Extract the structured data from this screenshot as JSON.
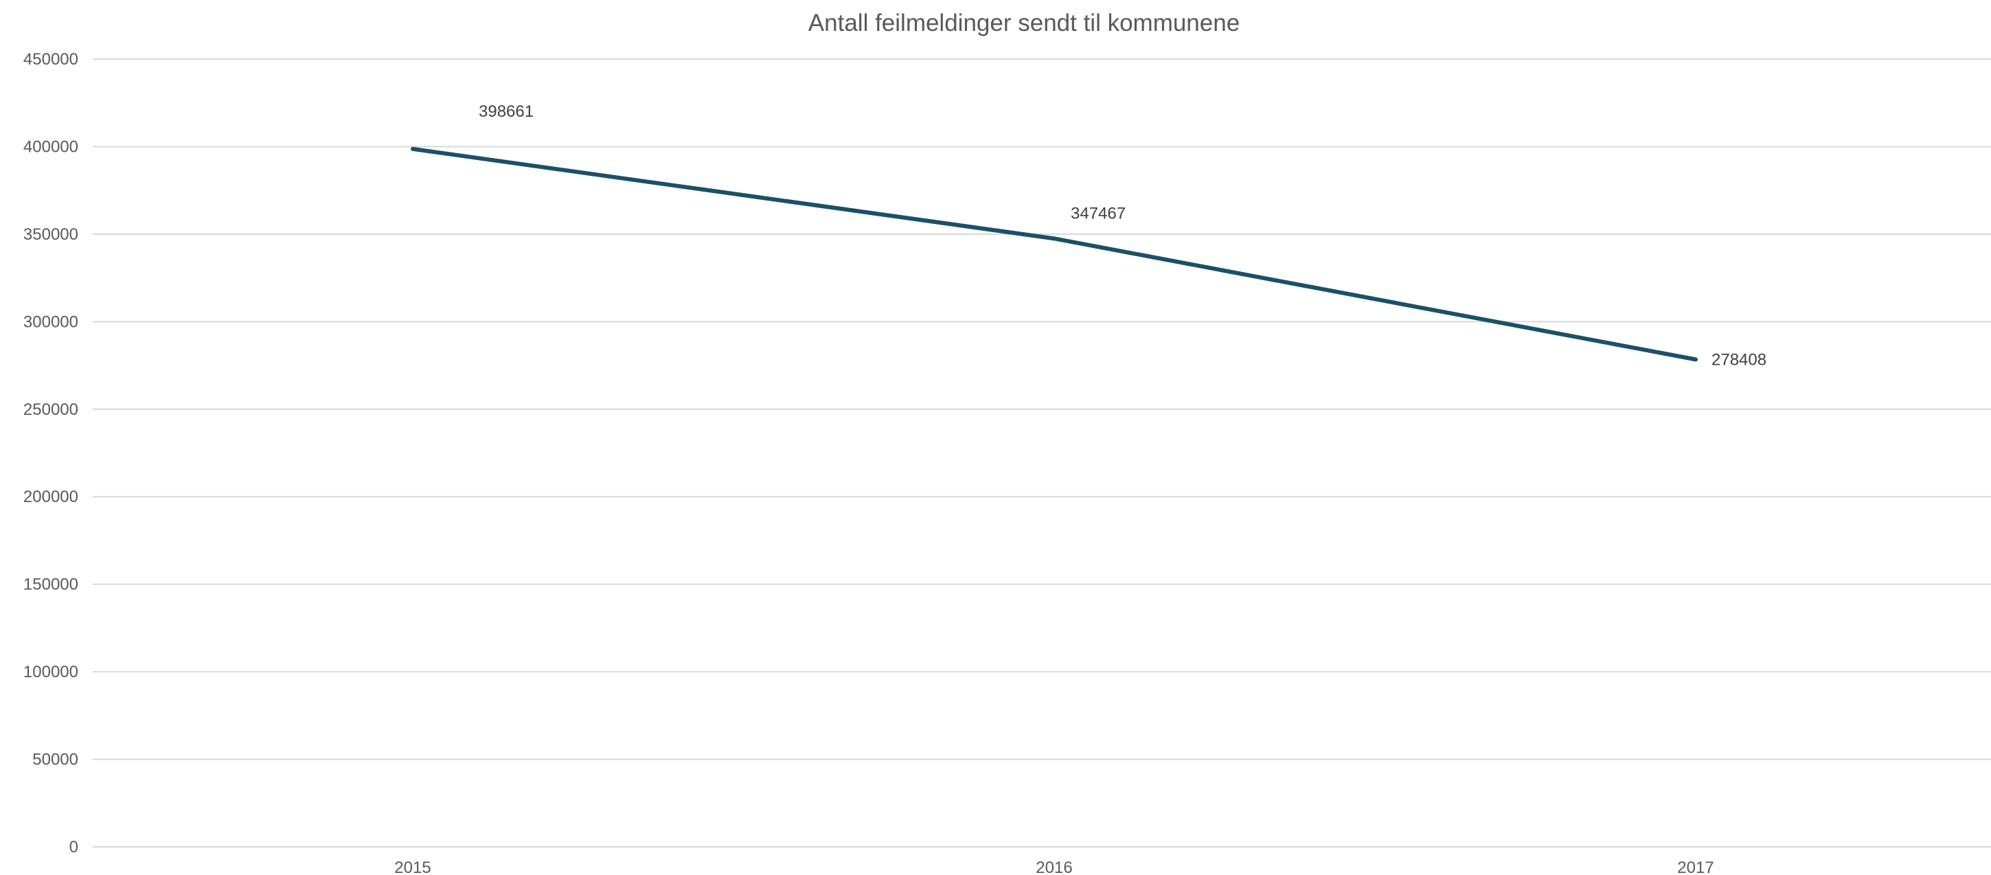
{
  "chart_data": {
    "type": "line",
    "title": "Antall feilmeldinger sendt til kommunene",
    "xlabel": "",
    "ylabel": "",
    "categories": [
      "2015",
      "2016",
      "2017"
    ],
    "series": [
      {
        "values": [
          398661,
          347467,
          278408
        ],
        "color": "#1b5068"
      }
    ],
    "data_labels": [
      "398661",
      "347467",
      "278408"
    ],
    "ylim": [
      0,
      450000
    ],
    "yticks": [
      "0",
      "50000",
      "100000",
      "150000",
      "200000",
      "250000",
      "300000",
      "350000",
      "400000",
      "450000"
    ],
    "grid": true,
    "legend": "none"
  }
}
